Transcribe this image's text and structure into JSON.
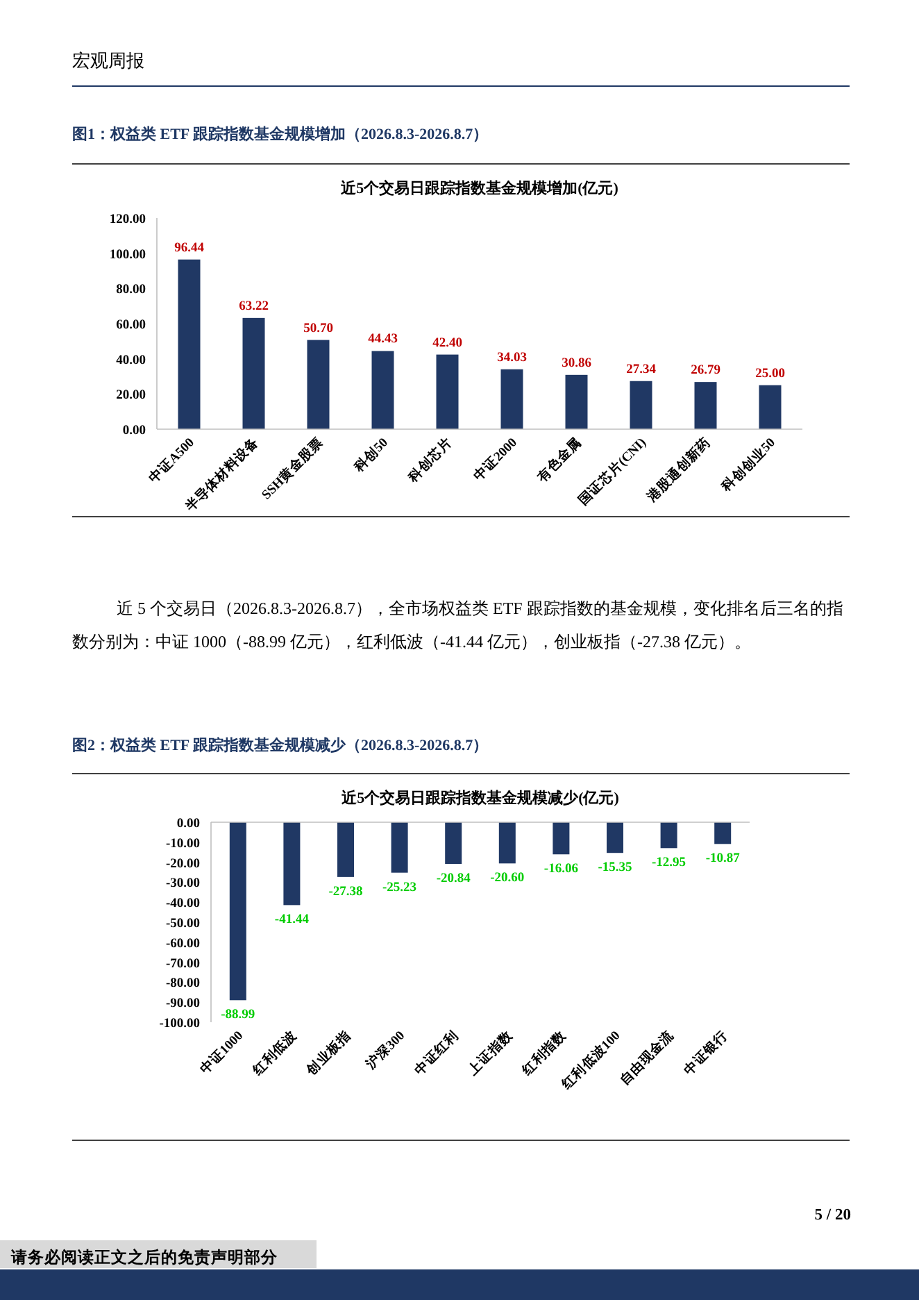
{
  "chart_data": [
    {
      "type": "bar",
      "title": "图1：权益类 ETF 跟踪指数基金规模增加（2026.8.3-2026.8.7）",
      "subtitle": "近5个交易日跟踪指数基金规模增加(亿元)",
      "categories": [
        "中证A500",
        "半导体材料设备",
        "SSH黄金股票",
        "科创50",
        "科创芯片",
        "中证2000",
        "有色金属",
        "国证芯片(CNI)",
        "港股通创新药",
        "科创创业50"
      ],
      "values": [
        96.44,
        63.22,
        50.7,
        44.43,
        42.4,
        34.03,
        30.86,
        27.34,
        26.79,
        25.0
      ],
      "value_labels": [
        "96.44",
        "63.22",
        "50.70",
        "44.43",
        "42.40",
        "34.03",
        "30.86",
        "27.34",
        "26.79",
        "25.00"
      ],
      "color": "#203864",
      "ylim": [
        0,
        120
      ],
      "yticks": [
        {
          "value": 0,
          "label": "0.00"
        },
        {
          "value": 20,
          "label": "20.00"
        },
        {
          "value": 40,
          "label": "40.00"
        },
        {
          "value": 60,
          "label": "60.00"
        },
        {
          "value": 80,
          "label": "80.00"
        },
        {
          "value": 100,
          "label": "100.00"
        },
        {
          "value": 120,
          "label": "120.00"
        }
      ],
      "annotations": [
        "宏观周报",
        "近 5 个交易日（2026.8.3-2026.8.7），全市场权益类 ETF 跟踪指数的基金规模，变化排名后三名的指数分别为：中证 1000（-88.99 亿元），红利低波（-41.44 亿元），创业板指（-27.38 亿元）。"
      ]
    },
    {
      "type": "bar",
      "title": "图2：权益类 ETF 跟踪指数基金规模减少（2026.8.3-2026.8.7）",
      "subtitle": "近5个交易日跟踪指数基金规模减少(亿元)",
      "categories": [
        "中证1000",
        "红利低波",
        "创业板指",
        "沪深300",
        "中证红利",
        "上证指数",
        "红利指数",
        "红利低波100",
        "自由现金流",
        "中证银行"
      ],
      "values": [
        -88.99,
        -41.44,
        -27.38,
        -25.23,
        -20.84,
        -20.6,
        -16.06,
        -15.35,
        -12.95,
        -10.87
      ],
      "value_labels": [
        "-88.99",
        "-41.44",
        "-27.38",
        "-25.23",
        "-20.84",
        "-20.60",
        "-16.06",
        "-15.35",
        "-12.95",
        "-10.87"
      ],
      "color": "#203864",
      "ylim": [
        -100,
        0
      ],
      "yticks": [
        {
          "value": 0,
          "label": "0.00"
        },
        {
          "value": -10,
          "label": "-10.00"
        },
        {
          "value": -20,
          "label": "-20.00"
        },
        {
          "value": -30,
          "label": "-30.00"
        },
        {
          "value": -40,
          "label": "-40.00"
        },
        {
          "value": -50,
          "label": "-50.00"
        },
        {
          "value": -60,
          "label": "-60.00"
        },
        {
          "value": -70,
          "label": "-70.00"
        },
        {
          "value": -80,
          "label": "-80.00"
        },
        {
          "value": -90,
          "label": "-90.00"
        },
        {
          "value": -100,
          "label": "-100.00"
        }
      ],
      "annotations": [
        "请务必阅读正文之后的免责声明部分",
        "5 / 20"
      ]
    }
  ]
}
